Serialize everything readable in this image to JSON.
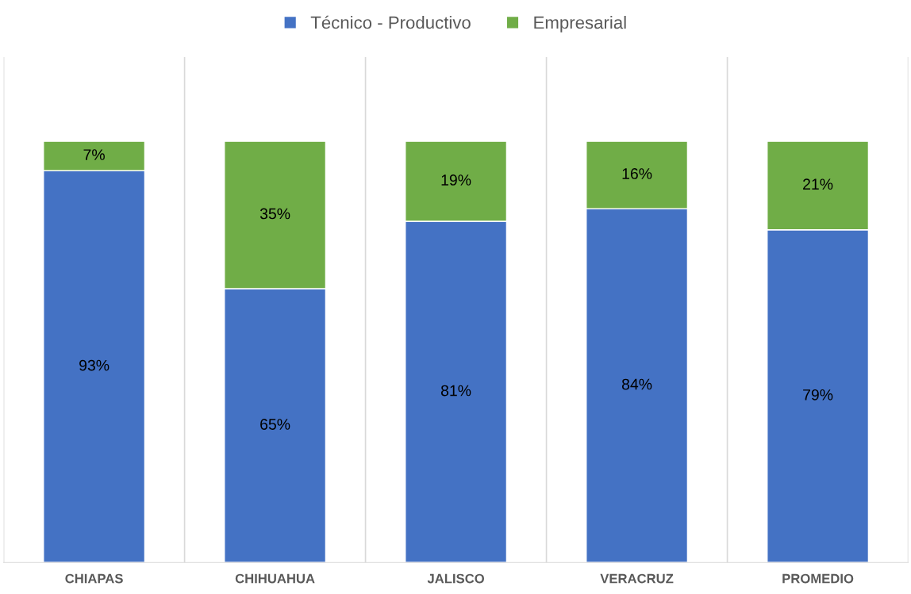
{
  "chart_data": {
    "type": "bar",
    "stacked": true,
    "grid": "x",
    "legend": "top",
    "categories": [
      "CHIAPAS",
      "CHIHUAHUA",
      "JALISCO",
      "VERACRUZ",
      "PROMEDIO"
    ],
    "series": [
      {
        "name": "Técnico - Productivo",
        "color": "#4472c4",
        "values": [
          93,
          65,
          81,
          84,
          79
        ],
        "value_labels": [
          "93%",
          "65%",
          "81%",
          "84%",
          "79%"
        ]
      },
      {
        "name": "Empresarial",
        "color": "#70ad47",
        "values": [
          7,
          35,
          19,
          16,
          21
        ],
        "value_labels": [
          "7%",
          "35%",
          "19%",
          "16%",
          "21%"
        ]
      }
    ]
  }
}
